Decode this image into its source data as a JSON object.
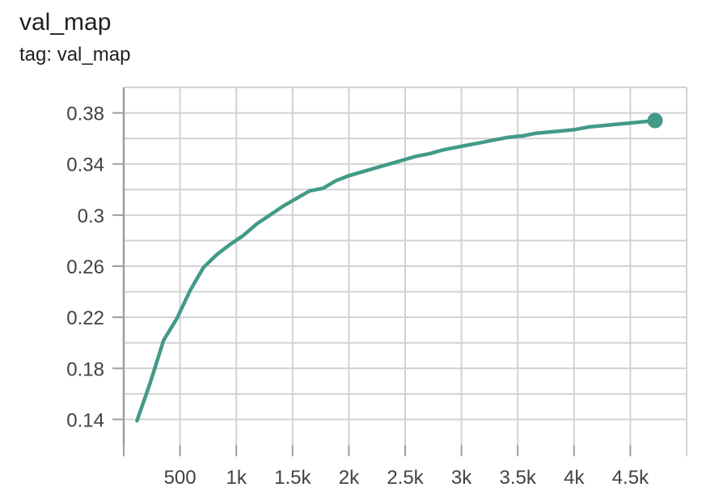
{
  "card": {
    "title": "val_map",
    "tag": "tag: val_map"
  },
  "colors": {
    "series": "#429a87",
    "grid": "#d2d2d2",
    "axis": "#9e9e9e",
    "text": "#424242"
  },
  "chart_data": {
    "type": "line",
    "title": "val_map",
    "subtitle": "tag: val_map",
    "xlim": [
      0,
      5000
    ],
    "ylim": [
      0.12,
      0.4
    ],
    "grid": true,
    "legend": "none",
    "x_ticks": [
      {
        "value": 500,
        "label": "500"
      },
      {
        "value": 1000,
        "label": "1k"
      },
      {
        "value": 1500,
        "label": "1.5k"
      },
      {
        "value": 2000,
        "label": "2k"
      },
      {
        "value": 2500,
        "label": "2.5k"
      },
      {
        "value": 3000,
        "label": "3k"
      },
      {
        "value": 3500,
        "label": "3.5k"
      },
      {
        "value": 4000,
        "label": "4k"
      },
      {
        "value": 4500,
        "label": "4.5k"
      }
    ],
    "y_ticks": [
      {
        "value": 0.14,
        "label": "0.14"
      },
      {
        "value": 0.18,
        "label": "0.18"
      },
      {
        "value": 0.22,
        "label": "0.22"
      },
      {
        "value": 0.26,
        "label": "0.26"
      },
      {
        "value": 0.3,
        "label": "0.3"
      },
      {
        "value": 0.34,
        "label": "0.34"
      },
      {
        "value": 0.38,
        "label": "0.38"
      }
    ],
    "series": [
      {
        "x": [
          118,
          236,
          354,
          472,
          590,
          708,
          826,
          944,
          1062,
          1180,
          1298,
          1416,
          1534,
          1652,
          1770,
          1888,
          2006,
          2124,
          2242,
          2360,
          2478,
          2596,
          2714,
          2832,
          2950,
          3068,
          3186,
          3304,
          3422,
          3540,
          3658,
          3776,
          3894,
          4012,
          4130,
          4248,
          4366,
          4484,
          4602,
          4720
        ],
        "y": [
          0.139,
          0.169,
          0.202,
          0.219,
          0.241,
          0.259,
          0.269,
          0.277,
          0.284,
          0.293,
          0.3,
          0.307,
          0.313,
          0.319,
          0.321,
          0.327,
          0.331,
          0.334,
          0.337,
          0.34,
          0.343,
          0.346,
          0.348,
          0.351,
          0.353,
          0.355,
          0.357,
          0.359,
          0.361,
          0.362,
          0.364,
          0.365,
          0.366,
          0.367,
          0.369,
          0.37,
          0.371,
          0.372,
          0.373,
          0.374
        ]
      }
    ]
  }
}
